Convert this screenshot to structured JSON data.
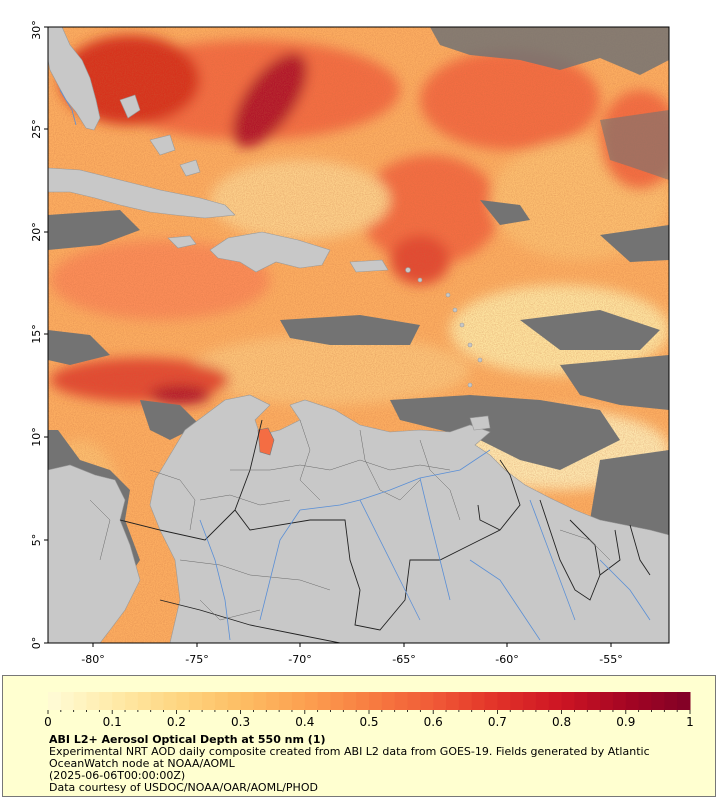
{
  "map": {
    "lat_ticks": [
      "0°",
      "5°",
      "10°",
      "15°",
      "20°",
      "25°",
      "30°"
    ],
    "lon_ticks": [
      "-80°",
      "-75°",
      "-70°",
      "-65°",
      "-60°",
      "-55°"
    ],
    "lon_range": [
      -82.2,
      -52.5
    ],
    "lat_range": [
      0,
      30
    ],
    "colors": {
      "land": "#c8c8c8",
      "nodata": "#737373",
      "river": "#5a8fd6",
      "border": "#1a1a1a",
      "aod_low": "#fff5c0",
      "aod_high": "#8b0020"
    }
  },
  "legend": {
    "title": "ABI L2+ Aerosol Optical Depth at 550 nm (1)",
    "description": "Experimental NRT AOD daily composite created from ABI L2 data from GOES-19. Fields generated by Atlantic OceanWatch node at NOAA/AOML",
    "date": "(2025-06-06T00:00:00Z)",
    "credit": "Data courtesy of USDOC/NOAA/OAR/AOML/PHOD",
    "colorbar_labels": [
      "0",
      "0.1",
      "0.2",
      "0.3",
      "0.4",
      "0.5",
      "0.6",
      "0.7",
      "0.8",
      "0.9",
      "1"
    ],
    "colorbar_range": [
      0,
      1
    ]
  }
}
